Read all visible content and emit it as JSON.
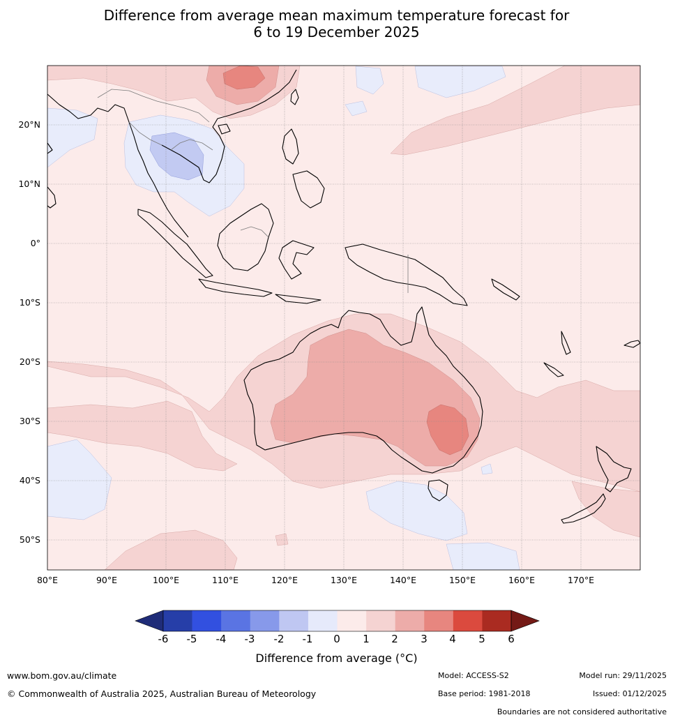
{
  "title_line1": "Difference from average mean maximum temperature forecast for",
  "title_line2": "6 to 19 December 2025",
  "map": {
    "lon_range": [
      80,
      180
    ],
    "lat_range": [
      -55,
      30
    ],
    "lat_ticks": [
      {
        "value": 20,
        "label": "20°N"
      },
      {
        "value": 10,
        "label": "10°N"
      },
      {
        "value": 0,
        "label": "0°"
      },
      {
        "value": -10,
        "label": "10°S"
      },
      {
        "value": -20,
        "label": "20°S"
      },
      {
        "value": -30,
        "label": "30°S"
      },
      {
        "value": -40,
        "label": "40°S"
      },
      {
        "value": -50,
        "label": "50°S"
      }
    ],
    "lon_ticks": [
      {
        "value": 80,
        "label": "80°E"
      },
      {
        "value": 90,
        "label": "90°E"
      },
      {
        "value": 100,
        "label": "100°E"
      },
      {
        "value": 110,
        "label": "110°E"
      },
      {
        "value": 120,
        "label": "120°E"
      },
      {
        "value": 130,
        "label": "130°E"
      },
      {
        "value": 140,
        "label": "140°E"
      },
      {
        "value": 150,
        "label": "150°E"
      },
      {
        "value": 160,
        "label": "160°E"
      },
      {
        "value": 170,
        "label": "170°E"
      }
    ]
  },
  "colorbar": {
    "ticks": [
      "-6",
      "-5",
      "-4",
      "-3",
      "-2",
      "-1",
      "0",
      "1",
      "2",
      "3",
      "4",
      "5",
      "6"
    ],
    "colors": [
      "#263ea8",
      "#3250e0",
      "#5a74e3",
      "#8799ea",
      "#bfc7f2",
      "#e6eafb",
      "#fcebea",
      "#f5d3d2",
      "#edaca9",
      "#e7867f",
      "#db4a3e",
      "#aa2b21"
    ],
    "under_color": "#1f2c78",
    "over_color": "#741a16",
    "label": "Difference from average (°C)"
  },
  "footer": {
    "website": "www.bom.gov.au/climate",
    "copyright": "© Commonwealth of Australia 2025, Australian Bureau of Meteorology",
    "model": "Model: ACCESS-S2",
    "base_period": "Base period: 1981-2018",
    "model_run": "Model run: 29/11/2025",
    "issued": "Issued: 01/12/2025",
    "boundaries_note": "Boundaries are not considered authoritative"
  }
}
